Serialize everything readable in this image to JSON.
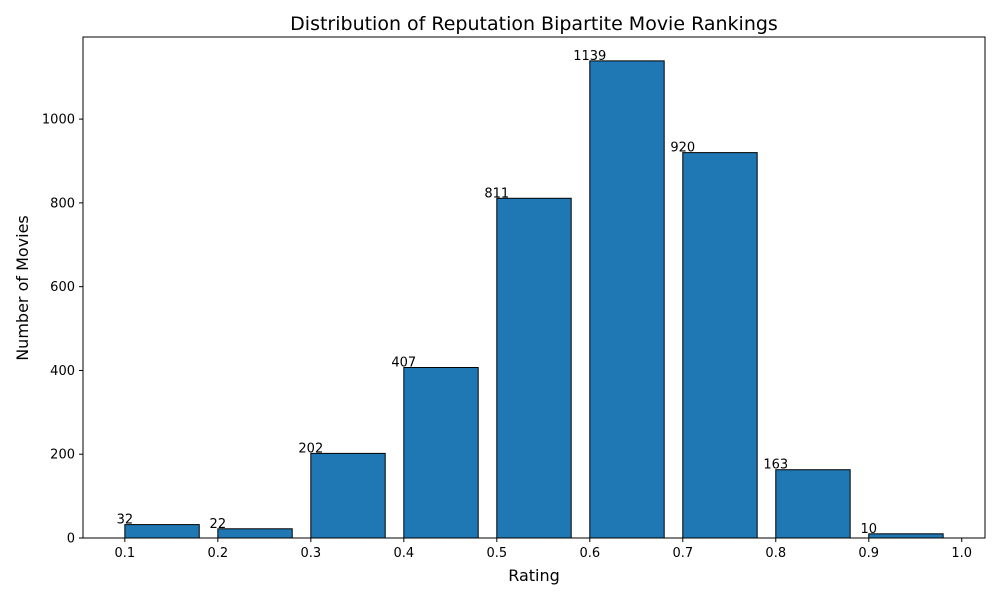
{
  "chart_data": {
    "type": "bar",
    "title": "Distribution of Reputation Bipartite Movie Rankings",
    "xlabel": "Rating",
    "ylabel": "Number of Movies",
    "bin_width": 0.1,
    "bar_width": 0.08,
    "bins": [
      {
        "start": 0.1,
        "value": 32
      },
      {
        "start": 0.2,
        "value": 22
      },
      {
        "start": 0.3,
        "value": 202
      },
      {
        "start": 0.4,
        "value": 407
      },
      {
        "start": 0.5,
        "value": 811
      },
      {
        "start": 0.6,
        "value": 1139
      },
      {
        "start": 0.7,
        "value": 920
      },
      {
        "start": 0.8,
        "value": 163
      },
      {
        "start": 0.9,
        "value": 10
      }
    ],
    "data_labels": [
      "32",
      "22",
      "202",
      "407",
      "811",
      "1139",
      "920",
      "163",
      "10"
    ],
    "xlim": [
      0.055,
      1.025
    ],
    "ylim": [
      0,
      1196
    ],
    "xticks": [
      0.1,
      0.2,
      0.3,
      0.4,
      0.5,
      0.6,
      0.7,
      0.8,
      0.9,
      1.0
    ],
    "xtick_labels": [
      "0.1",
      "0.2",
      "0.3",
      "0.4",
      "0.5",
      "0.6",
      "0.7",
      "0.8",
      "0.9",
      "1.0"
    ],
    "yticks": [
      0,
      200,
      400,
      600,
      800,
      1000
    ],
    "ytick_labels": [
      "0",
      "200",
      "400",
      "600",
      "800",
      "1000"
    ],
    "grid": false,
    "legend": "none",
    "bar_color": "#1f77b4",
    "edge_color": "#000000"
  }
}
